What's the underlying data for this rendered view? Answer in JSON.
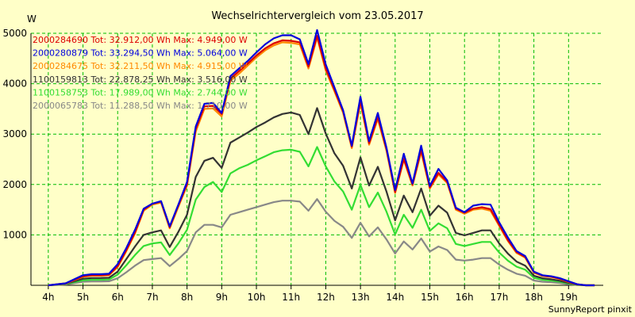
{
  "chart_data": {
    "type": "line",
    "title": "Wechselrichtervergleich vom 23.05.2017",
    "ylabel": "W",
    "xlabel": "",
    "ylim": [
      0,
      5000
    ],
    "xlim": [
      3.5,
      20
    ],
    "y_ticks": [
      1000,
      2000,
      3000,
      4000,
      5000
    ],
    "x_ticks": [
      4,
      5,
      6,
      7,
      8,
      9,
      10,
      11,
      12,
      13,
      14,
      15,
      16,
      17,
      18,
      19
    ],
    "x_tick_labels": [
      "4h",
      "5h",
      "6h",
      "7h",
      "8h",
      "9h",
      "10h",
      "11h",
      "12h",
      "13h",
      "14h",
      "15h",
      "16h",
      "17h",
      "18h",
      "19h"
    ],
    "grid": true,
    "legend_position": "top-left",
    "footer": "SunnyReport pinxit",
    "colors": {
      "background": "#ffffc8",
      "grid": "#00bb00",
      "axis": "#000000"
    },
    "x": [
      4.0,
      4.5,
      5.0,
      5.25,
      5.5,
      5.75,
      6.0,
      6.25,
      6.5,
      6.75,
      7.0,
      7.25,
      7.5,
      7.75,
      8.0,
      8.25,
      8.5,
      8.75,
      9.0,
      9.25,
      9.5,
      9.75,
      10.0,
      10.25,
      10.5,
      10.75,
      11.0,
      11.25,
      11.5,
      11.75,
      12.0,
      12.25,
      12.5,
      12.75,
      13.0,
      13.25,
      13.5,
      13.75,
      14.0,
      14.25,
      14.5,
      14.75,
      15.0,
      15.25,
      15.5,
      15.75,
      16.0,
      16.25,
      16.5,
      16.75,
      17.0,
      17.25,
      17.5,
      17.75,
      18.0,
      18.25,
      18.5,
      18.75,
      19.0,
      19.25,
      19.5,
      19.75
    ],
    "series": [
      {
        "name": "2000284690",
        "label": "2000284690 Tot: 32.912,00 Wh Max: 4.949,00 W",
        "color": "#dd0000",
        "values": [
          0,
          40,
          180,
          200,
          200,
          210,
          380,
          700,
          1050,
          1500,
          1620,
          1660,
          1150,
          1580,
          2000,
          3100,
          3550,
          3560,
          3400,
          4100,
          4250,
          4400,
          4560,
          4700,
          4800,
          4860,
          4850,
          4820,
          4340,
          4950,
          4300,
          3880,
          3450,
          2750,
          3660,
          2820,
          3340,
          2700,
          1850,
          2510,
          2000,
          2680,
          1940,
          2230,
          2050,
          1520,
          1440,
          1520,
          1550,
          1510,
          1200,
          900,
          660,
          560,
          260,
          190,
          170,
          130,
          70,
          20,
          0,
          0
        ]
      },
      {
        "name": "2000280879",
        "label": "2000280879 Tot: 33.294,50 Wh Max: 5.064,00 W",
        "color": "#0000dd",
        "values": [
          0,
          40,
          200,
          220,
          220,
          230,
          420,
          740,
          1100,
          1520,
          1620,
          1670,
          1170,
          1600,
          2050,
          3150,
          3600,
          3620,
          3420,
          4150,
          4300,
          4450,
          4620,
          4780,
          4900,
          4960,
          4960,
          4880,
          4390,
          5064,
          4380,
          3930,
          3470,
          2770,
          3740,
          2860,
          3420,
          2730,
          1890,
          2610,
          2020,
          2770,
          1970,
          2310,
          2080,
          1540,
          1450,
          1580,
          1610,
          1600,
          1250,
          950,
          680,
          580,
          270,
          200,
          180,
          140,
          80,
          20,
          0,
          0
        ]
      },
      {
        "name": "2000284675",
        "label": "2000284675 Tot: 32.211,50 Wh Max: 4.915,00 W",
        "color": "#ff8800",
        "values": [
          0,
          35,
          170,
          190,
          190,
          200,
          360,
          680,
          1030,
          1480,
          1600,
          1640,
          1130,
          1560,
          1980,
          3050,
          3500,
          3510,
          3350,
          4060,
          4200,
          4360,
          4520,
          4660,
          4760,
          4820,
          4810,
          4780,
          4300,
          4915,
          4260,
          3850,
          3420,
          2720,
          3620,
          2790,
          3300,
          2670,
          1830,
          2490,
          1980,
          2650,
          1920,
          2200,
          2030,
          1500,
          1420,
          1500,
          1520,
          1480,
          1180,
          880,
          640,
          550,
          250,
          185,
          165,
          125,
          65,
          18,
          0,
          0
        ]
      },
      {
        "name": "1100159813",
        "label": "1100159813 Tot: 22.878,25 Wh Max: 3.516,00 W",
        "color": "#333333",
        "values": [
          0,
          30,
          130,
          145,
          145,
          150,
          270,
          520,
          770,
          1000,
          1050,
          1090,
          760,
          1060,
          1400,
          2150,
          2470,
          2530,
          2330,
          2830,
          2930,
          3030,
          3140,
          3230,
          3330,
          3400,
          3430,
          3380,
          3000,
          3516,
          3010,
          2620,
          2370,
          1920,
          2540,
          1980,
          2350,
          1860,
          1290,
          1780,
          1450,
          1920,
          1380,
          1580,
          1440,
          1040,
          990,
          1040,
          1090,
          1090,
          830,
          630,
          470,
          390,
          190,
          140,
          120,
          90,
          45,
          12,
          0,
          0
        ]
      },
      {
        "name": "1100158753",
        "label": "1100158753 Tot: 17.989,00 Wh Max: 2.744,00 W",
        "color": "#33dd33",
        "values": [
          0,
          25,
          100,
          110,
          110,
          115,
          210,
          400,
          600,
          780,
          830,
          850,
          600,
          830,
          1100,
          1700,
          1950,
          2050,
          1850,
          2220,
          2320,
          2390,
          2480,
          2560,
          2640,
          2680,
          2690,
          2650,
          2360,
          2744,
          2360,
          2060,
          1860,
          1500,
          1990,
          1550,
          1840,
          1460,
          1010,
          1400,
          1140,
          1500,
          1080,
          1230,
          1130,
          820,
          780,
          820,
          860,
          860,
          650,
          490,
          370,
          310,
          150,
          110,
          95,
          70,
          35,
          10,
          0,
          0
        ]
      },
      {
        "name": "2000065783",
        "label": "2000065783 Tot: 11.288,50 Wh Max: 1.710,00 W",
        "color": "#888888",
        "values": [
          0,
          15,
          70,
          75,
          75,
          80,
          140,
          260,
          390,
          500,
          520,
          540,
          380,
          520,
          680,
          1050,
          1200,
          1200,
          1150,
          1400,
          1450,
          1500,
          1550,
          1600,
          1650,
          1680,
          1680,
          1660,
          1480,
          1710,
          1460,
          1280,
          1160,
          940,
          1240,
          970,
          1150,
          910,
          630,
          870,
          710,
          930,
          670,
          770,
          700,
          510,
          490,
          510,
          540,
          540,
          410,
          310,
          230,
          190,
          95,
          70,
          60,
          45,
          22,
          6,
          0,
          0
        ]
      }
    ]
  }
}
